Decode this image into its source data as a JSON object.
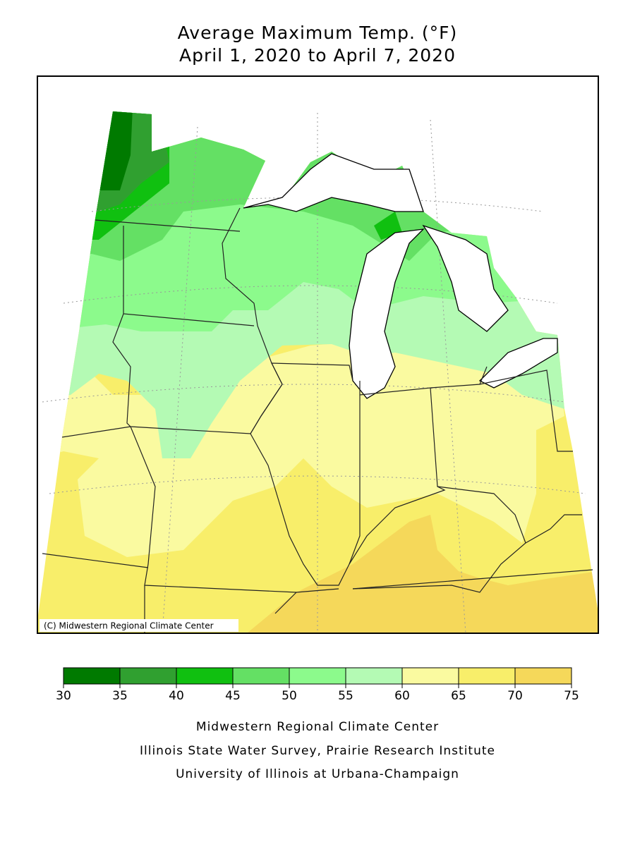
{
  "title": [
    "Average Maximum Temp. (°F)",
    "April 1, 2020 to April 7, 2020"
  ],
  "map": {
    "credit": "(C) Midwestern Regional Climate Center"
  },
  "legend": {
    "ticks": [
      30,
      35,
      40,
      45,
      50,
      55,
      60,
      65,
      70,
      75
    ],
    "colors": [
      "#007a00",
      "#30a030",
      "#10c010",
      "#64e064",
      "#8cfa8c",
      "#b4fab4",
      "#fafaa0",
      "#f8ee6a",
      "#f5d85a"
    ]
  },
  "footer": [
    "Midwestern Regional Climate Center",
    "Illinois State Water Survey, Prairie Research Institute",
    "University of Illinois at Urbana-Champaign"
  ]
}
